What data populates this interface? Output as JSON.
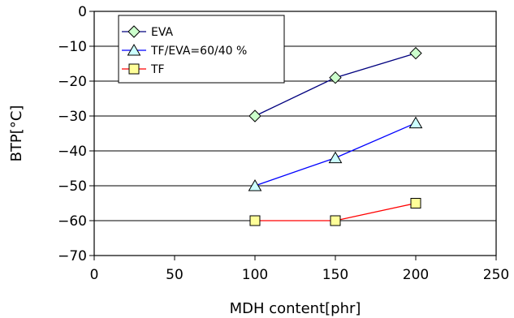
{
  "chart_data": {
    "type": "line",
    "title": "",
    "xlabel": "MDH content[phr]",
    "ylabel": "BTP[°C]",
    "xlim": [
      0,
      250
    ],
    "ylim": [
      -70,
      0
    ],
    "x_ticks": [
      0,
      50,
      100,
      150,
      200,
      250
    ],
    "y_ticks": [
      0,
      -10,
      -20,
      -30,
      -40,
      -50,
      -60,
      -70
    ],
    "x_tick_labels": [
      "0",
      "50",
      "100",
      "150",
      "200",
      "250"
    ],
    "y_tick_labels": [
      "0",
      "−10",
      "−20",
      "−30",
      "−40",
      "−50",
      "−60",
      "−70"
    ],
    "grid": "horizontal",
    "legend_position": "top-left",
    "series": [
      {
        "name": "EVA",
        "marker": "diamond",
        "line_color": "#00007f",
        "marker_fill": "#ccffcc",
        "x": [
          100,
          150,
          200
        ],
        "y": [
          -30,
          -19,
          -12
        ]
      },
      {
        "name": "TF/EVA=60/40 %",
        "marker": "triangle",
        "line_color": "#0000ff",
        "marker_fill": "#ccffff",
        "x": [
          100,
          150,
          200
        ],
        "y": [
          -50,
          -42,
          -32
        ]
      },
      {
        "name": "TF",
        "marker": "square",
        "line_color": "#ff0000",
        "marker_fill": "#ffff99",
        "x": [
          100,
          150,
          200
        ],
        "y": [
          -60,
          -60,
          -55
        ]
      }
    ]
  }
}
